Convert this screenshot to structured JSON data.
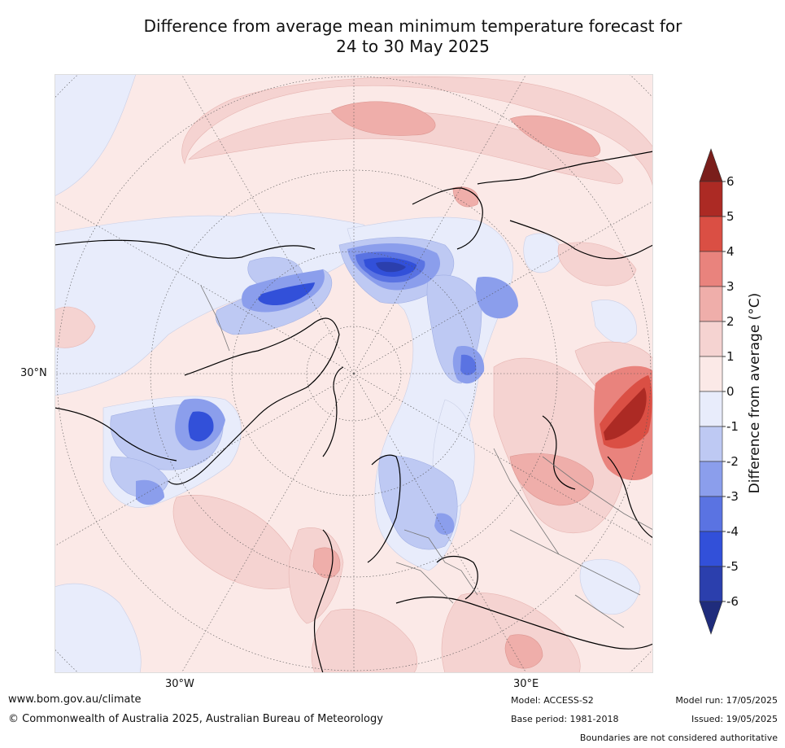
{
  "title_line1": "Difference from average mean minimum temperature forecast for",
  "title_line2": "24 to 30 May 2025",
  "map": {
    "projection": "north-polar-stereographic",
    "lat_label": "30°N",
    "lon_labels": [
      "30°W",
      "30°E"
    ],
    "background_color": "#fbe9e7"
  },
  "colorbar": {
    "title": "Difference from average (°C)",
    "ticks": [
      "6",
      "5",
      "4",
      "3",
      "2",
      "1",
      "0",
      "-1",
      "-2",
      "-3",
      "-4",
      "-5",
      "-6"
    ],
    "levels": [
      {
        "range": "above 6",
        "color": "#7a1e1b"
      },
      {
        "range": "5 to 6",
        "color": "#ac2a24"
      },
      {
        "range": "4 to 5",
        "color": "#da4f44"
      },
      {
        "range": "3 to 4",
        "color": "#e9837d"
      },
      {
        "range": "2 to 3",
        "color": "#efaeaa"
      },
      {
        "range": "1 to 2",
        "color": "#f5d3d1"
      },
      {
        "range": "0 to 1",
        "color": "#fbe9e7"
      },
      {
        "range": "-1 to 0",
        "color": "#e8ecfb"
      },
      {
        "range": "-2 to -1",
        "color": "#bec9f3"
      },
      {
        "range": "-3 to -2",
        "color": "#8b9eec"
      },
      {
        "range": "-4 to -3",
        "color": "#5a73e2"
      },
      {
        "range": "-5 to -4",
        "color": "#3250d9"
      },
      {
        "range": "-6 to -5",
        "color": "#2b3fad"
      },
      {
        "range": "below -6",
        "color": "#1f2c7c"
      }
    ]
  },
  "footer": {
    "website": "www.bom.gov.au/climate",
    "copyright": "© Commonwealth of Australia 2025, Australian Bureau of Meteorology",
    "model": "Model: ACCESS-S2",
    "base_period": "Base period: 1981-2018",
    "model_run": "Model run: 17/05/2025",
    "issued": "Issued: 19/05/2025",
    "disclaimer": "Boundaries are not considered authoritative"
  }
}
